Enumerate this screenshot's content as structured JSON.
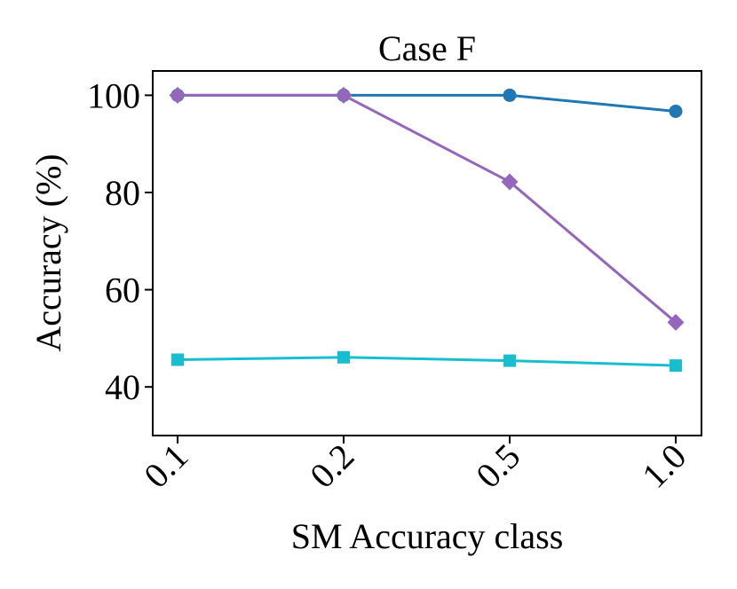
{
  "chart_data": {
    "type": "line",
    "title": "Case F",
    "xlabel": "SM Accuracy class",
    "ylabel": "Accuracy (%)",
    "categories": [
      "0.1",
      "0.2",
      "0.5",
      "1.0"
    ],
    "ylim": [
      30,
      105
    ],
    "yticks": [
      40,
      60,
      80,
      100
    ],
    "grid": false,
    "x_tick_rotation_deg": 45,
    "series": [
      {
        "color": "#1f77b4",
        "marker": "circle",
        "values": [
          100,
          100,
          100,
          96.7
        ]
      },
      {
        "color": "#9467bd",
        "marker": "diamond",
        "values": [
          100,
          100,
          82.2,
          53.3
        ]
      },
      {
        "color": "#17becf",
        "marker": "square",
        "values": [
          45.6,
          46.1,
          45.4,
          44.4
        ]
      }
    ]
  }
}
